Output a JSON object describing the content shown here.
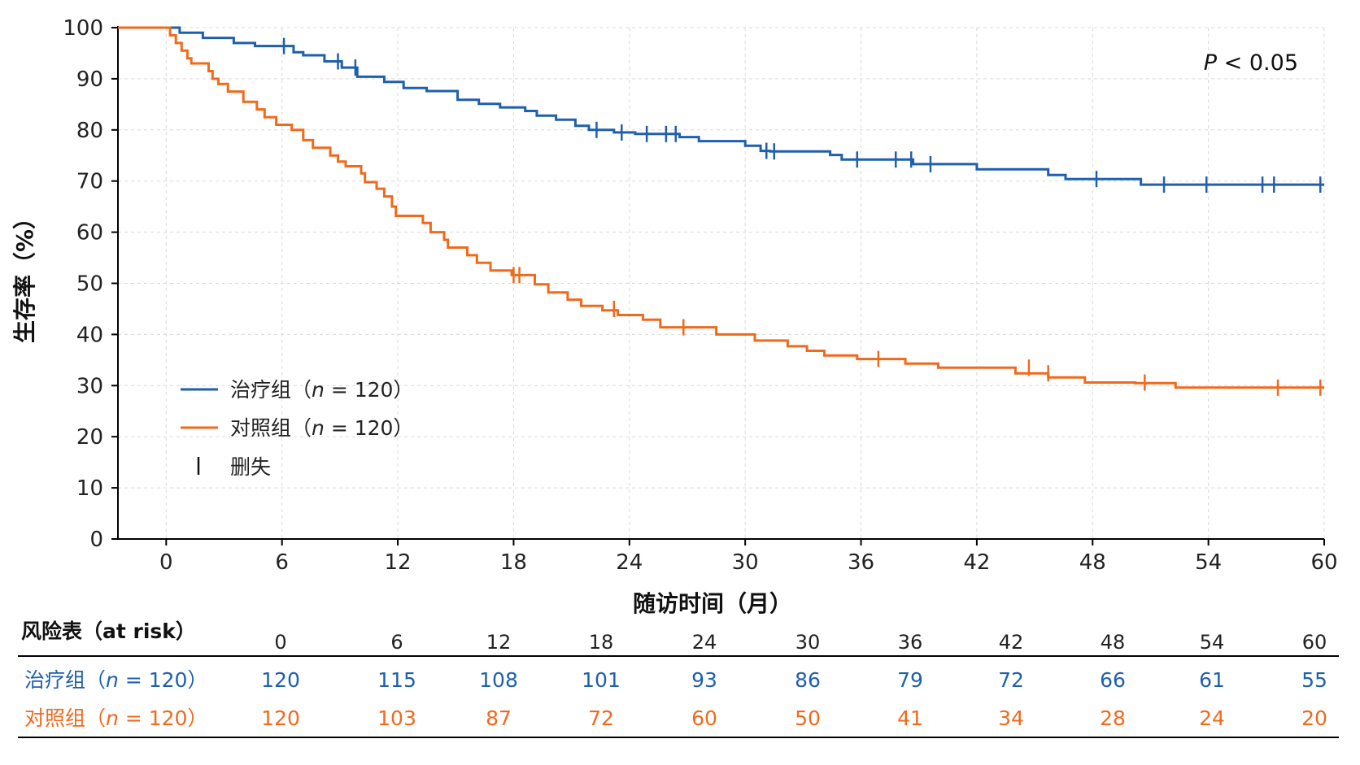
{
  "chart_data": {
    "type": "line",
    "subtype": "kaplan-meier",
    "ylabel": "生存率（%）",
    "xlabel": "随访时间（月）",
    "xlim": [
      -2.5,
      60
    ],
    "ylim": [
      0,
      100
    ],
    "x_ticks": [
      "0",
      "6",
      "12",
      "18",
      "24",
      "30",
      "36",
      "42",
      "48",
      "54",
      "60"
    ],
    "y_ticks": [
      "0",
      "10",
      "20",
      "30",
      "40",
      "50",
      "60",
      "70",
      "80",
      "90",
      "100"
    ],
    "grid": true,
    "legend_position": "lower-left",
    "p_value": {
      "italic": "P",
      "text": " < 0.05"
    },
    "censor_legend_label": "删失",
    "series": [
      {
        "name": "治疗组（n = 120）",
        "name_prefix": "治疗组（",
        "name_italic": "n",
        "name_suffix": " = 120）",
        "color": "#1f5fae",
        "steps": [
          [
            -2.5,
            100
          ],
          [
            0.7,
            100
          ],
          [
            0.7,
            99
          ],
          [
            1.9,
            99
          ],
          [
            1.9,
            98
          ],
          [
            3.5,
            98
          ],
          [
            3.5,
            97
          ],
          [
            4.6,
            97
          ],
          [
            4.6,
            96.4
          ],
          [
            6.6,
            96.4
          ],
          [
            6.6,
            95.2
          ],
          [
            7.1,
            95.2
          ],
          [
            7.1,
            94.6
          ],
          [
            8.2,
            94.6
          ],
          [
            8.2,
            93.4
          ],
          [
            9.1,
            93.4
          ],
          [
            9.1,
            92.2
          ],
          [
            9.9,
            92.2
          ],
          [
            9.9,
            90.4
          ],
          [
            11.3,
            90.4
          ],
          [
            11.3,
            89.4
          ],
          [
            12.3,
            89.4
          ],
          [
            12.3,
            88.2
          ],
          [
            13.5,
            88.2
          ],
          [
            13.5,
            87.6
          ],
          [
            15.1,
            87.6
          ],
          [
            15.1,
            85.9
          ],
          [
            16.2,
            85.9
          ],
          [
            16.2,
            85.1
          ],
          [
            17.3,
            85.1
          ],
          [
            17.3,
            84.4
          ],
          [
            18.6,
            84.4
          ],
          [
            18.6,
            83.7
          ],
          [
            19.2,
            83.7
          ],
          [
            19.2,
            82.8
          ],
          [
            20.2,
            82.8
          ],
          [
            20.2,
            82
          ],
          [
            21.2,
            82
          ],
          [
            21.2,
            80.8
          ],
          [
            21.9,
            80.8
          ],
          [
            21.9,
            80
          ],
          [
            23.2,
            80
          ],
          [
            23.2,
            79.5
          ],
          [
            24.3,
            79.5
          ],
          [
            24.3,
            79.2
          ],
          [
            26.6,
            79.2
          ],
          [
            26.6,
            78.6
          ],
          [
            27.6,
            78.6
          ],
          [
            27.6,
            77.8
          ],
          [
            30,
            77.8
          ],
          [
            30,
            76.9
          ],
          [
            30.8,
            76.9
          ],
          [
            30.8,
            75.9
          ],
          [
            31.3,
            75.9
          ],
          [
            31.3,
            75.8
          ],
          [
            34.4,
            75.8
          ],
          [
            34.4,
            75.1
          ],
          [
            35,
            75.1
          ],
          [
            35,
            74.2
          ],
          [
            38.7,
            74.2
          ],
          [
            38.7,
            73.3
          ],
          [
            42,
            73.3
          ],
          [
            42,
            72.3
          ],
          [
            45.7,
            72.3
          ],
          [
            45.7,
            71.2
          ],
          [
            46.6,
            71.2
          ],
          [
            46.6,
            70.4
          ],
          [
            50.5,
            70.4
          ],
          [
            50.5,
            69.3
          ],
          [
            60,
            69.3
          ]
        ],
        "censor_times": [
          [
            6.1,
            96.4
          ],
          [
            8.9,
            93.4
          ],
          [
            9.8,
            92.2
          ],
          [
            22.3,
            80
          ],
          [
            23.6,
            79.5
          ],
          [
            24.9,
            79.2
          ],
          [
            25.9,
            79.2
          ],
          [
            26.4,
            79.2
          ],
          [
            31.1,
            75.9
          ],
          [
            31.5,
            75.8
          ],
          [
            35.8,
            74.2
          ],
          [
            37.8,
            74.2
          ],
          [
            38.6,
            74.2
          ],
          [
            39.6,
            73.3
          ],
          [
            48.2,
            70.4
          ],
          [
            51.7,
            69.3
          ],
          [
            53.9,
            69.3
          ],
          [
            56.8,
            69.3
          ],
          [
            57.4,
            69.3
          ],
          [
            59.8,
            69.3
          ]
        ]
      },
      {
        "name": "对照组（n = 120）",
        "name_prefix": "对照组（",
        "name_italic": "n",
        "name_suffix": " = 120）",
        "color": "#f06a1c",
        "steps": [
          [
            -2.5,
            100
          ],
          [
            0.2,
            100
          ],
          [
            0.2,
            98.5
          ],
          [
            0.5,
            98.5
          ],
          [
            0.5,
            97
          ],
          [
            0.8,
            97
          ],
          [
            0.8,
            95.5
          ],
          [
            1.1,
            95.5
          ],
          [
            1.1,
            94
          ],
          [
            1.3,
            94
          ],
          [
            1.3,
            93
          ],
          [
            2.2,
            93
          ],
          [
            2.2,
            91.5
          ],
          [
            2.4,
            91.5
          ],
          [
            2.4,
            90
          ],
          [
            2.7,
            90
          ],
          [
            2.7,
            89
          ],
          [
            3.2,
            89
          ],
          [
            3.2,
            87.5
          ],
          [
            4,
            87.5
          ],
          [
            4,
            85.5
          ],
          [
            4.7,
            85.5
          ],
          [
            4.7,
            84
          ],
          [
            5.1,
            84
          ],
          [
            5.1,
            82.5
          ],
          [
            5.7,
            82.5
          ],
          [
            5.7,
            81
          ],
          [
            6.5,
            81
          ],
          [
            6.5,
            80
          ],
          [
            7.1,
            80
          ],
          [
            7.1,
            78
          ],
          [
            7.6,
            78
          ],
          [
            7.6,
            76.5
          ],
          [
            8.5,
            76.5
          ],
          [
            8.5,
            75
          ],
          [
            8.9,
            75
          ],
          [
            8.9,
            73.8
          ],
          [
            9.3,
            73.8
          ],
          [
            9.3,
            72.9
          ],
          [
            10.1,
            72.9
          ],
          [
            10.1,
            71.5
          ],
          [
            10.3,
            71.5
          ],
          [
            10.3,
            69.8
          ],
          [
            10.9,
            69.8
          ],
          [
            10.9,
            68.5
          ],
          [
            11.3,
            68.5
          ],
          [
            11.3,
            67
          ],
          [
            11.7,
            67
          ],
          [
            11.7,
            65
          ],
          [
            11.9,
            65
          ],
          [
            11.9,
            63.2
          ],
          [
            13.3,
            63.2
          ],
          [
            13.3,
            61.8
          ],
          [
            13.7,
            61.8
          ],
          [
            13.7,
            60
          ],
          [
            14.4,
            60
          ],
          [
            14.4,
            58.5
          ],
          [
            14.6,
            58.5
          ],
          [
            14.6,
            57
          ],
          [
            15.6,
            57
          ],
          [
            15.6,
            55.5
          ],
          [
            16.1,
            55.5
          ],
          [
            16.1,
            54
          ],
          [
            16.8,
            54
          ],
          [
            16.8,
            52.5
          ],
          [
            17.9,
            52.5
          ],
          [
            17.9,
            51.6
          ],
          [
            19.1,
            51.6
          ],
          [
            19.1,
            49.8
          ],
          [
            19.8,
            49.8
          ],
          [
            19.8,
            48.2
          ],
          [
            20.8,
            48.2
          ],
          [
            20.8,
            46.8
          ],
          [
            21.5,
            46.8
          ],
          [
            21.5,
            45.6
          ],
          [
            22.6,
            45.6
          ],
          [
            22.6,
            44.7
          ],
          [
            23.4,
            44.7
          ],
          [
            23.4,
            43.8
          ],
          [
            24.7,
            43.8
          ],
          [
            24.7,
            42.9
          ],
          [
            25.6,
            42.9
          ],
          [
            25.6,
            41.4
          ],
          [
            28.5,
            41.4
          ],
          [
            28.5,
            40
          ],
          [
            30.5,
            40
          ],
          [
            30.5,
            38.8
          ],
          [
            32.2,
            38.8
          ],
          [
            32.2,
            37.7
          ],
          [
            33.2,
            37.7
          ],
          [
            33.2,
            36.8
          ],
          [
            34.1,
            36.8
          ],
          [
            34.1,
            35.9
          ],
          [
            35.8,
            35.9
          ],
          [
            35.8,
            35.2
          ],
          [
            38.3,
            35.2
          ],
          [
            38.3,
            34.3
          ],
          [
            40,
            34.3
          ],
          [
            40,
            33.5
          ],
          [
            44,
            33.5
          ],
          [
            44,
            32.4
          ],
          [
            45.7,
            32.4
          ],
          [
            45.7,
            31.6
          ],
          [
            47.6,
            31.6
          ],
          [
            47.6,
            30.6
          ],
          [
            50.2,
            30.6
          ],
          [
            50.2,
            30.5
          ],
          [
            52.3,
            30.5
          ],
          [
            52.3,
            29.6
          ],
          [
            60,
            29.6
          ]
        ],
        "censor_times": [
          [
            18,
            51.6
          ],
          [
            18.3,
            51.6
          ],
          [
            23.2,
            45
          ],
          [
            26.8,
            41.4
          ],
          [
            36.9,
            35.2
          ],
          [
            44.7,
            33.5
          ],
          [
            45.7,
            32.4
          ],
          [
            50.7,
            30.6
          ],
          [
            57.6,
            29.6
          ],
          [
            59.8,
            29.6
          ]
        ]
      }
    ]
  },
  "risk_table": {
    "title": "风险表（at risk）",
    "times": [
      "0",
      "6",
      "12",
      "18",
      "24",
      "30",
      "36",
      "42",
      "48",
      "54",
      "60"
    ],
    "rows": [
      {
        "label_prefix": "治疗组（",
        "label_italic": "n",
        "label_suffix": " = 120）",
        "color": "#1f5fae",
        "values": [
          "120",
          "115",
          "108",
          "101",
          "93",
          "86",
          "79",
          "72",
          "66",
          "61",
          "55"
        ]
      },
      {
        "label_prefix": "对照组（",
        "label_italic": "n",
        "label_suffix": " = 120）",
        "color": "#f06a1c",
        "values": [
          "120",
          "103",
          "87",
          "72",
          "60",
          "50",
          "41",
          "34",
          "28",
          "24",
          "20"
        ]
      }
    ]
  }
}
